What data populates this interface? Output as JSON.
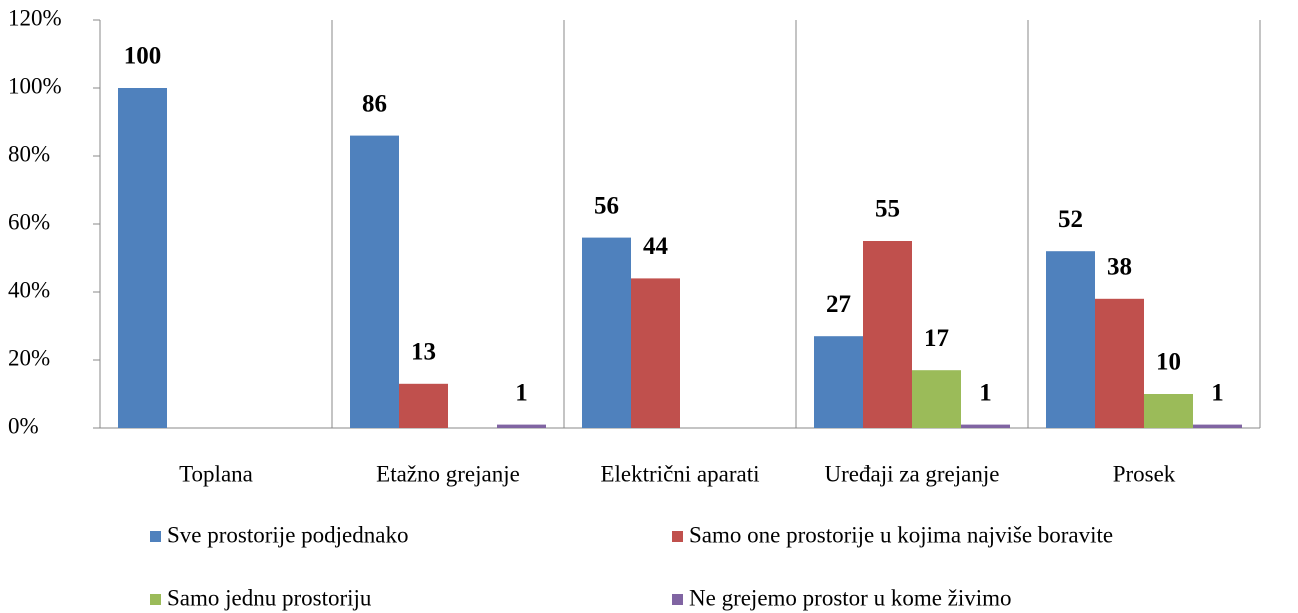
{
  "chart_data": {
    "type": "bar",
    "categories": [
      "Toplana",
      "Etažno grejanje",
      "Električni aparati",
      "Uređaji za grejanje",
      "Prosek"
    ],
    "series": [
      {
        "name": "Sve prostorije podjednako",
        "color": "#4f81bd",
        "values": [
          100,
          86,
          56,
          27,
          52
        ]
      },
      {
        "name": "Samo one prostorije u kojima najviše boravite",
        "color": "#c0504d",
        "values": [
          null,
          13,
          44,
          55,
          38
        ]
      },
      {
        "name": "Samo jednu prostoriju",
        "color": "#9bbb59",
        "values": [
          null,
          null,
          null,
          17,
          10
        ]
      },
      {
        "name": "Ne grejemo prostor u kome živimo",
        "color": "#8064a2",
        "values": [
          null,
          1,
          null,
          1,
          1
        ]
      }
    ],
    "ylim": [
      0,
      120
    ],
    "yticks": [
      {
        "value": 0,
        "label": "0%"
      },
      {
        "value": 20,
        "label": "20%"
      },
      {
        "value": 40,
        "label": "40%"
      },
      {
        "value": 60,
        "label": "60%"
      },
      {
        "value": 80,
        "label": "80%"
      },
      {
        "value": 100,
        "label": "100%"
      },
      {
        "value": 120,
        "label": "120%"
      }
    ],
    "legend": "bottom"
  }
}
